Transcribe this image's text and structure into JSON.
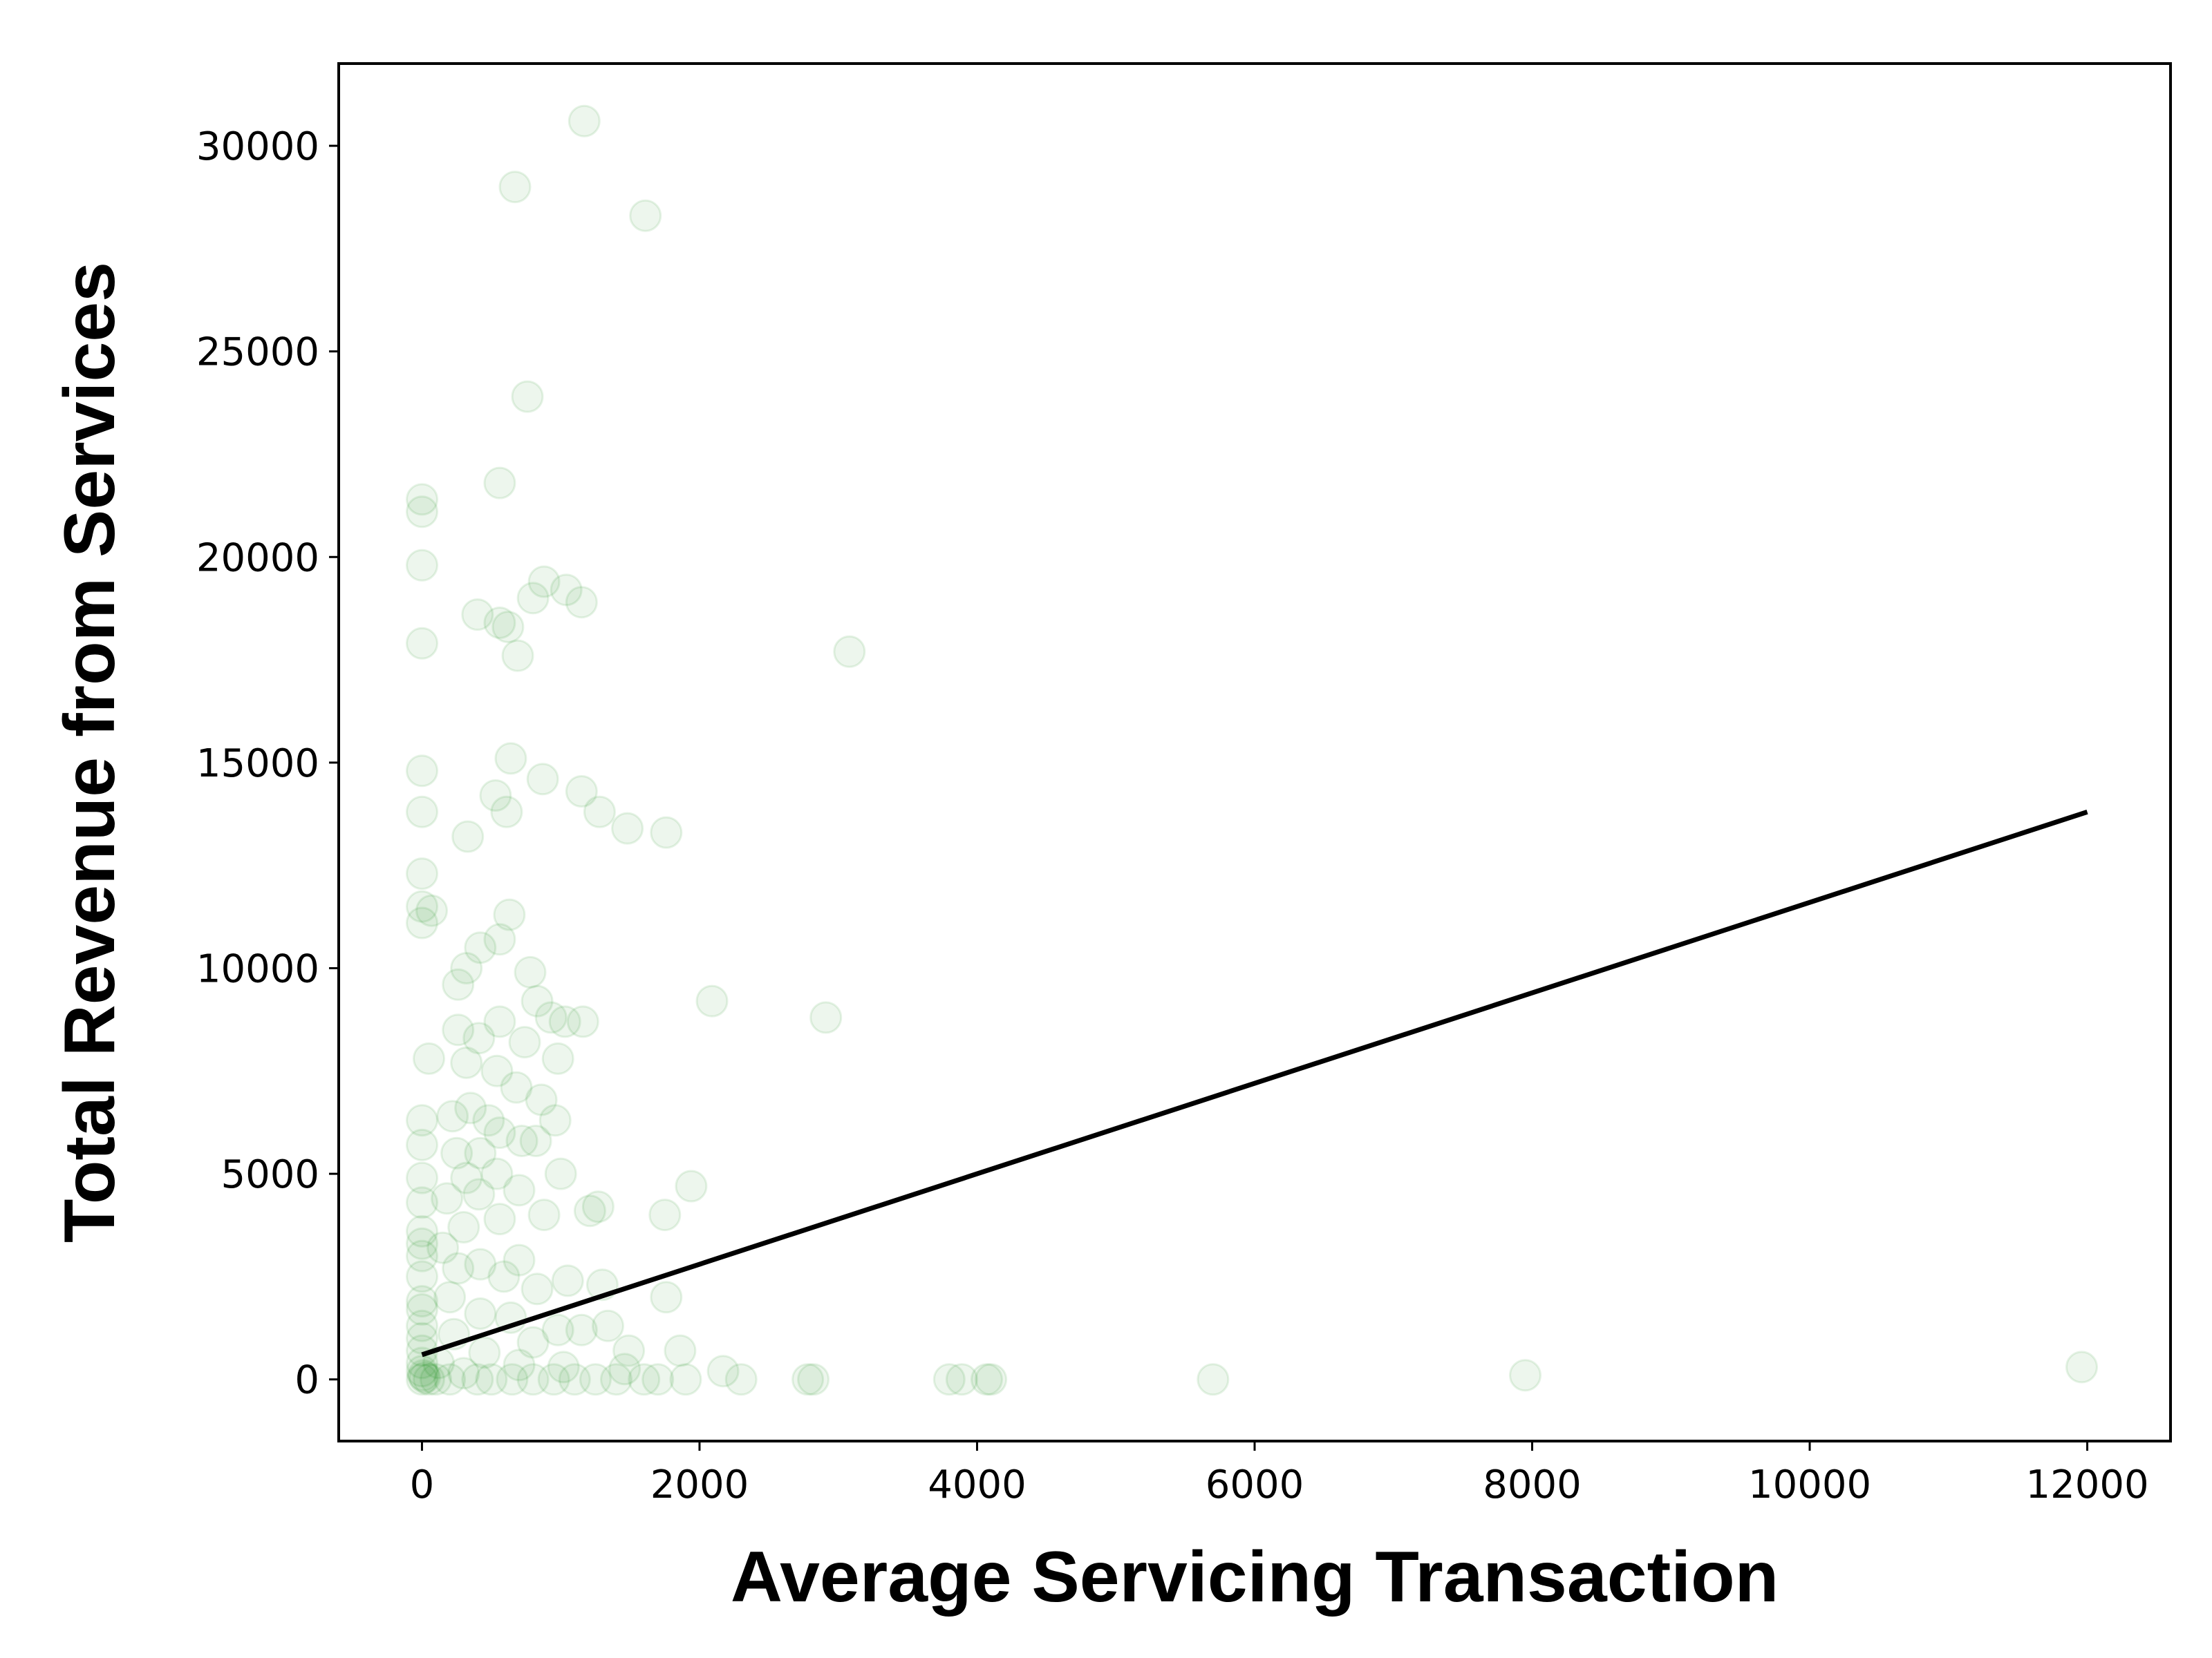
{
  "chart_data": {
    "type": "scatter",
    "title": "",
    "xlabel": "Average Servicing Transaction",
    "ylabel": "Total Revenue from Services",
    "xlim": [
      -600,
      12600
    ],
    "ylim": [
      -1500,
      32000
    ],
    "xticks": [
      0,
      2000,
      4000,
      6000,
      8000,
      10000,
      12000
    ],
    "yticks": [
      0,
      5000,
      10000,
      15000,
      20000,
      25000,
      30000
    ],
    "grid": false,
    "legend": "none",
    "marker_color": "#008000",
    "marker_alpha": 0.07,
    "line_color": "#000000",
    "trend_line": {
      "x": [
        0,
        12000
      ],
      "y": [
        600,
        13800
      ]
    },
    "points": [
      [
        1170,
        30600
      ],
      [
        670,
        29000
      ],
      [
        1610,
        28300
      ],
      [
        760,
        23900
      ],
      [
        560,
        21800
      ],
      [
        0,
        21400
      ],
      [
        0,
        21100
      ],
      [
        0,
        19800
      ],
      [
        880,
        19400
      ],
      [
        1040,
        19200
      ],
      [
        800,
        19000
      ],
      [
        1150,
        18900
      ],
      [
        400,
        18600
      ],
      [
        560,
        18400
      ],
      [
        620,
        18300
      ],
      [
        3080,
        17700
      ],
      [
        690,
        17600
      ],
      [
        0,
        17900
      ],
      [
        640,
        15100
      ],
      [
        0,
        14800
      ],
      [
        870,
        14600
      ],
      [
        1150,
        14300
      ],
      [
        530,
        14200
      ],
      [
        1280,
        13800
      ],
      [
        610,
        13800
      ],
      [
        0,
        13800
      ],
      [
        1480,
        13400
      ],
      [
        1760,
        13300
      ],
      [
        330,
        13200
      ],
      [
        0,
        12300
      ],
      [
        0,
        11500
      ],
      [
        70,
        11400
      ],
      [
        0,
        11100
      ],
      [
        630,
        11300
      ],
      [
        560,
        10700
      ],
      [
        420,
        10500
      ],
      [
        320,
        10000
      ],
      [
        260,
        9600
      ],
      [
        780,
        9900
      ],
      [
        830,
        9200
      ],
      [
        2090,
        9200
      ],
      [
        2910,
        8800
      ],
      [
        930,
        8800
      ],
      [
        1030,
        8700
      ],
      [
        1160,
        8700
      ],
      [
        560,
        8700
      ],
      [
        410,
        8300
      ],
      [
        260,
        8500
      ],
      [
        740,
        8200
      ],
      [
        980,
        7800
      ],
      [
        50,
        7800
      ],
      [
        540,
        7500
      ],
      [
        320,
        7700
      ],
      [
        680,
        7100
      ],
      [
        860,
        6800
      ],
      [
        350,
        6600
      ],
      [
        220,
        6400
      ],
      [
        0,
        6300
      ],
      [
        480,
        6300
      ],
      [
        960,
        6300
      ],
      [
        560,
        6000
      ],
      [
        720,
        5800
      ],
      [
        820,
        5800
      ],
      [
        420,
        5500
      ],
      [
        250,
        5500
      ],
      [
        0,
        5700
      ],
      [
        1000,
        5000
      ],
      [
        540,
        5000
      ],
      [
        320,
        4900
      ],
      [
        0,
        4900
      ],
      [
        1940,
        4700
      ],
      [
        700,
        4600
      ],
      [
        410,
        4500
      ],
      [
        180,
        4400
      ],
      [
        0,
        4300
      ],
      [
        1270,
        4200
      ],
      [
        1210,
        4100
      ],
      [
        1750,
        4000
      ],
      [
        880,
        4000
      ],
      [
        560,
        3900
      ],
      [
        300,
        3700
      ],
      [
        0,
        3600
      ],
      [
        0,
        3300
      ],
      [
        150,
        3200
      ],
      [
        0,
        3000
      ],
      [
        700,
        2900
      ],
      [
        420,
        2800
      ],
      [
        260,
        2700
      ],
      [
        590,
        2500
      ],
      [
        0,
        2500
      ],
      [
        1050,
        2400
      ],
      [
        1300,
        2300
      ],
      [
        830,
        2200
      ],
      [
        200,
        2000
      ],
      [
        1760,
        2000
      ],
      [
        0,
        1900
      ],
      [
        0,
        1700
      ],
      [
        420,
        1600
      ],
      [
        640,
        1500
      ],
      [
        0,
        1300
      ],
      [
        980,
        1200
      ],
      [
        1150,
        1200
      ],
      [
        1340,
        1300
      ],
      [
        230,
        1100
      ],
      [
        0,
        1000
      ],
      [
        800,
        900
      ],
      [
        1490,
        700
      ],
      [
        1860,
        700
      ],
      [
        0,
        700
      ],
      [
        450,
        650
      ],
      [
        120,
        400
      ],
      [
        0,
        400
      ],
      [
        700,
        350
      ],
      [
        1020,
        300
      ],
      [
        1460,
        250
      ],
      [
        2170,
        200
      ],
      [
        0,
        200
      ],
      [
        300,
        150
      ],
      [
        11960,
        300
      ],
      [
        7950,
        100
      ],
      [
        2300,
        0
      ],
      [
        2780,
        0
      ],
      [
        2820,
        0
      ],
      [
        3800,
        0
      ],
      [
        3890,
        0
      ],
      [
        4070,
        0
      ],
      [
        4100,
        0
      ],
      [
        5700,
        0
      ],
      [
        1900,
        0
      ],
      [
        1600,
        0
      ],
      [
        1250,
        0
      ],
      [
        950,
        0
      ],
      [
        650,
        0
      ],
      [
        400,
        0
      ],
      [
        200,
        0
      ],
      [
        100,
        0
      ],
      [
        50,
        0
      ],
      [
        0,
        0
      ],
      [
        20,
        50
      ],
      [
        10,
        100
      ],
      [
        1700,
        0
      ],
      [
        1400,
        0
      ],
      [
        1100,
        0
      ],
      [
        800,
        0
      ],
      [
        500,
        0
      ]
    ]
  }
}
